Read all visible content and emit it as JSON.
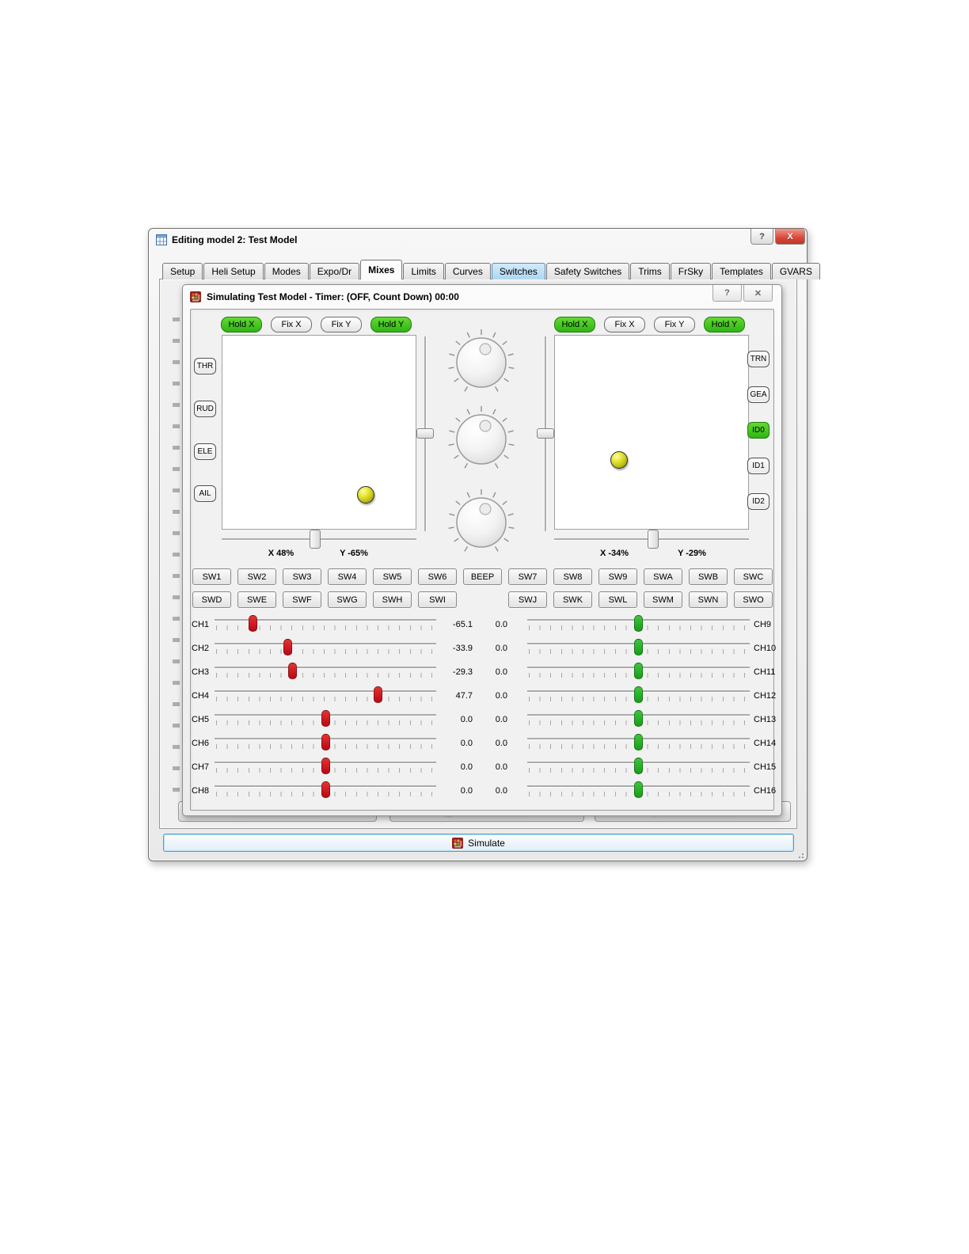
{
  "window": {
    "title": "Editing model 2: Test Model",
    "help_glyph": "?",
    "close_glyph": "X"
  },
  "tabs": [
    {
      "label": "Setup"
    },
    {
      "label": "Heli Setup"
    },
    {
      "label": "Modes"
    },
    {
      "label": "Expo/Dr"
    },
    {
      "label": "Mixes",
      "state": "selected"
    },
    {
      "label": "Limits"
    },
    {
      "label": "Curves"
    },
    {
      "label": "Switches",
      "state": "highlight"
    },
    {
      "label": "Safety Switches"
    },
    {
      "label": "Trims"
    },
    {
      "label": "FrSky"
    },
    {
      "label": "Templates"
    },
    {
      "label": "GVARS"
    }
  ],
  "dialog": {
    "title": "Simulating Test Model - Timer: (OFF, Count Down) 00:00",
    "help_glyph": "?",
    "close_glyph": "✕",
    "left_stick": {
      "hold_buttons": [
        {
          "label": "Hold X",
          "active": true
        },
        {
          "label": "Fix X"
        },
        {
          "label": "Fix Y"
        },
        {
          "label": "Hold Y",
          "active": true
        }
      ],
      "side_buttons": [
        {
          "label": "THR"
        },
        {
          "label": "RUD"
        },
        {
          "label": "ELE"
        },
        {
          "label": "AIL"
        }
      ],
      "x": 48,
      "y": -65,
      "x_label": "X 48%",
      "y_label": "Y -65%"
    },
    "right_stick": {
      "hold_buttons": [
        {
          "label": "Hold X",
          "active": true
        },
        {
          "label": "Fix X"
        },
        {
          "label": "Fix Y"
        },
        {
          "label": "Hold Y",
          "active": true
        }
      ],
      "side_buttons": [
        {
          "label": "TRN"
        },
        {
          "label": "GEA"
        },
        {
          "label": "ID0",
          "active": true
        },
        {
          "label": "ID1"
        },
        {
          "label": "ID2"
        }
      ],
      "x": -34,
      "y": -29,
      "x_label": "X -34%",
      "y_label": "Y -29%"
    },
    "switches_row1": [
      {
        "label": "SW1"
      },
      {
        "label": "SW2"
      },
      {
        "label": "SW3"
      },
      {
        "label": "SW4"
      },
      {
        "label": "SW5"
      },
      {
        "label": "SW6"
      },
      {
        "label": "BEEP"
      },
      {
        "label": "SW7"
      },
      {
        "label": "SW8"
      },
      {
        "label": "SW9"
      },
      {
        "label": "SWA"
      },
      {
        "label": "SWB"
      },
      {
        "label": "SWC"
      }
    ],
    "switches_row2": [
      {
        "label": "SWD"
      },
      {
        "label": "SWE"
      },
      {
        "label": "SWF"
      },
      {
        "label": "SWG"
      },
      {
        "label": "SWH"
      },
      {
        "label": "SWI"
      },
      {
        "label": ""
      },
      {
        "label": "SWJ"
      },
      {
        "label": "SWK"
      },
      {
        "label": "SWL"
      },
      {
        "label": "SWM"
      },
      {
        "label": "SWN"
      },
      {
        "label": "SWO"
      }
    ],
    "channels_left": [
      {
        "label": "CH1",
        "value": -65.1,
        "value_text": "-65.1"
      },
      {
        "label": "CH2",
        "value": -33.9,
        "value_text": "-33.9"
      },
      {
        "label": "CH3",
        "value": -29.3,
        "value_text": "-29.3"
      },
      {
        "label": "CH4",
        "value": 47.7,
        "value_text": "47.7"
      },
      {
        "label": "CH5",
        "value": 0,
        "value_text": "0.0"
      },
      {
        "label": "CH6",
        "value": 0,
        "value_text": "0.0"
      },
      {
        "label": "CH7",
        "value": 0,
        "value_text": "0.0"
      },
      {
        "label": "CH8",
        "value": 0,
        "value_text": "0.0"
      }
    ],
    "channels_right": [
      {
        "label": "CH9",
        "value": 0,
        "value_text": "0.0"
      },
      {
        "label": "CH10",
        "value": 0,
        "value_text": "0.0"
      },
      {
        "label": "CH11",
        "value": 0,
        "value_text": "0.0"
      },
      {
        "label": "CH12",
        "value": 0,
        "value_text": "0.0"
      },
      {
        "label": "CH13",
        "value": 0,
        "value_text": "0.0"
      },
      {
        "label": "CH14",
        "value": 0,
        "value_text": "0.0"
      },
      {
        "label": "CH15",
        "value": 0,
        "value_text": "0.0"
      },
      {
        "label": "CH16",
        "value": 0,
        "value_text": "0.0"
      }
    ]
  },
  "simulate_label": "Simulate",
  "colors": {
    "active_green": "#3fcc1d",
    "handle_red": "#c50f1c",
    "handle_green": "#22aa22",
    "tab_highlight": "#aed7f1",
    "ball_yellow": "#c9c91c"
  }
}
